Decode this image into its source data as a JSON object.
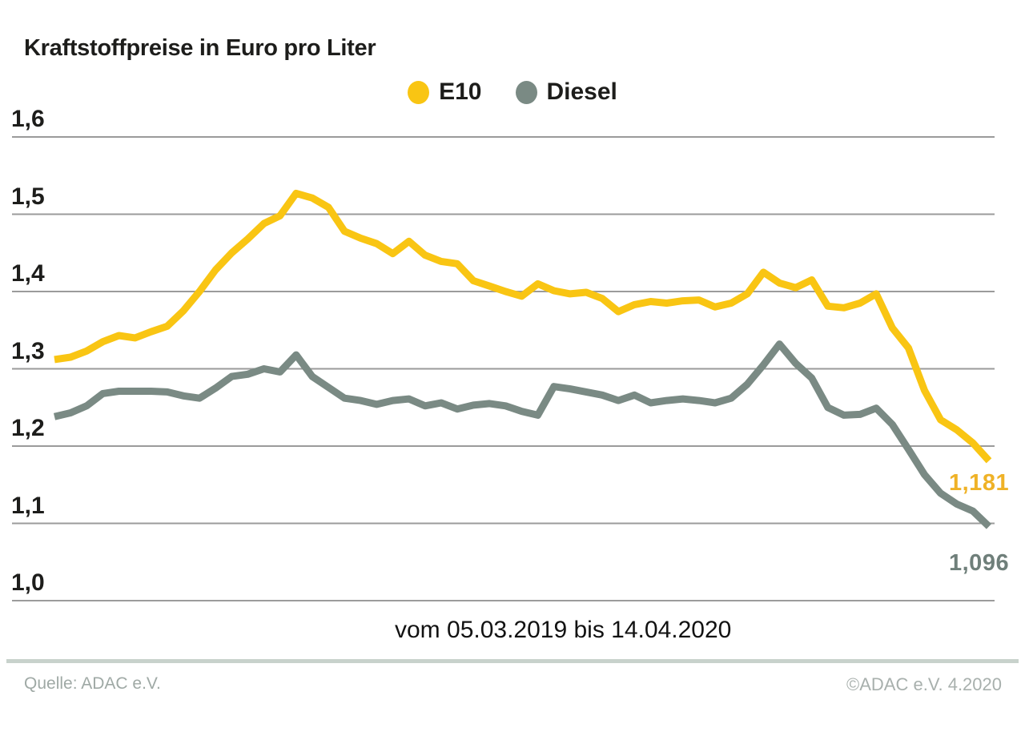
{
  "title": "Kraftstoffpreise in Euro pro Liter",
  "footer": {
    "source": "Quelle: ADAC e.V.",
    "copyright": "©ADAC e.V. 4.2020"
  },
  "colors": {
    "e10_line": "#f9c513",
    "e10_label": "#efb227",
    "diesel_line": "#7a8a84",
    "diesel_label": "#6f7f7a",
    "gridline": "#9b9b9b",
    "text": "#1d1d1b"
  },
  "chart_data": {
    "type": "line",
    "title": "Kraftstoffpreise in Euro pro Liter",
    "xlabel": "vom 05.03.2019 bis 14.04.2020",
    "ylabel": "Euro pro Liter",
    "x_start": "05.03.2019",
    "x_end": "14.04.2020",
    "x_interval": "weekly",
    "ylim": [
      1.0,
      1.6
    ],
    "ytick_labels": [
      "1,0",
      "1,1",
      "1,2",
      "1,3",
      "1,4",
      "1,5",
      "1,6"
    ],
    "ytick_values": [
      1.0,
      1.1,
      1.2,
      1.3,
      1.4,
      1.5,
      1.6
    ],
    "grid": true,
    "legend_position": "top-center",
    "series": [
      {
        "name": "E10",
        "end_label": "1,181",
        "values": [
          1.312,
          1.315,
          1.323,
          1.335,
          1.343,
          1.34,
          1.348,
          1.355,
          1.375,
          1.4,
          1.428,
          1.45,
          1.468,
          1.488,
          1.498,
          1.527,
          1.521,
          1.509,
          1.478,
          1.469,
          1.462,
          1.449,
          1.465,
          1.447,
          1.439,
          1.436,
          1.414,
          1.407,
          1.4,
          1.394,
          1.41,
          1.401,
          1.397,
          1.399,
          1.391,
          1.374,
          1.383,
          1.387,
          1.385,
          1.388,
          1.389,
          1.38,
          1.385,
          1.397,
          1.425,
          1.411,
          1.405,
          1.415,
          1.381,
          1.379,
          1.385,
          1.397,
          1.353,
          1.327,
          1.272,
          1.234,
          1.221,
          1.204,
          1.181
        ]
      },
      {
        "name": "Diesel",
        "end_label": "1,096",
        "values": [
          1.238,
          1.243,
          1.252,
          1.268,
          1.271,
          1.271,
          1.271,
          1.27,
          1.265,
          1.262,
          1.275,
          1.29,
          1.293,
          1.3,
          1.296,
          1.318,
          1.29,
          1.276,
          1.262,
          1.259,
          1.254,
          1.259,
          1.261,
          1.252,
          1.256,
          1.248,
          1.253,
          1.255,
          1.252,
          1.245,
          1.24,
          1.277,
          1.274,
          1.27,
          1.266,
          1.259,
          1.266,
          1.256,
          1.259,
          1.261,
          1.259,
          1.256,
          1.262,
          1.28,
          1.305,
          1.332,
          1.307,
          1.288,
          1.25,
          1.24,
          1.241,
          1.249,
          1.228,
          1.196,
          1.163,
          1.139,
          1.125,
          1.116,
          1.096
        ]
      }
    ]
  }
}
